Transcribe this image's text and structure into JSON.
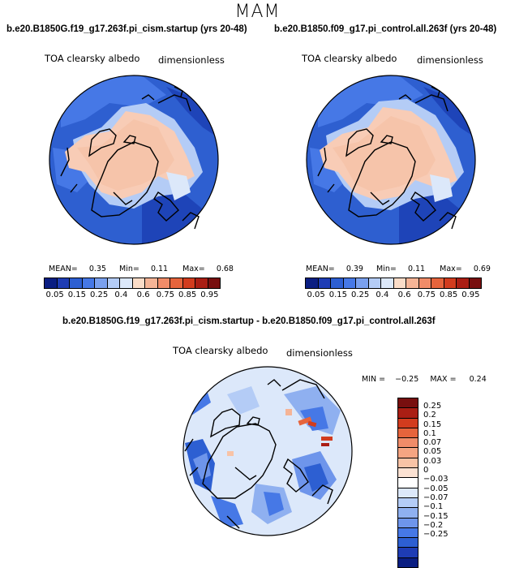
{
  "figure": {
    "season": "MAM",
    "diff_title": "b.e20.B1850G.f19_g17.263f.pi_cism.startup - b.e20.B1850.f09_g17.pi_control.all.263f"
  },
  "panels": [
    {
      "title": "b.e20.B1850G.f19_g17.263f.pi_cism.startup (yrs 20-48)",
      "variable": "TOA clearsky albedo",
      "units": "dimensionless",
      "stats": {
        "mean_label": "MEAN=",
        "mean": "0.35",
        "min_label": "Min=",
        "min": "0.11",
        "max_label": "Max=",
        "max": "0.68"
      }
    },
    {
      "title": "b.e20.B1850.f09_g17.pi_control.all.263f (yrs 20-48)",
      "variable": "TOA clearsky albedo",
      "units": "dimensionless",
      "stats": {
        "mean_label": "MEAN=",
        "mean": "0.39",
        "min_label": "Min=",
        "min": "0.11",
        "max_label": "Max=",
        "max": "0.69"
      }
    },
    {
      "variable": "TOA clearsky albedo",
      "units": "dimensionless",
      "stats": {
        "min_label": "MIN =",
        "min": "−0.25",
        "max_label": "MAX =",
        "max": "0.24"
      }
    }
  ],
  "colorbars": {
    "main": {
      "colors": [
        "#0a1e82",
        "#1e3cb4",
        "#2d5fd2",
        "#4678e6",
        "#7aa0ee",
        "#b4ccf6",
        "#dce8fa",
        "#fadcc8",
        "#f5b496",
        "#f08c69",
        "#e6643c",
        "#d23c1e",
        "#aa1e14",
        "#780f0f"
      ],
      "labels": [
        "0.05",
        "0.15",
        "0.25",
        "0.4",
        "0.6",
        "0.75",
        "0.85",
        "0.95"
      ]
    },
    "diff": {
      "colors": [
        "#780f0f",
        "#aa1e14",
        "#d23c1e",
        "#e6643c",
        "#f08c69",
        "#f5a582",
        "#f8c3a6",
        "#fbe1d2",
        "#ffffff",
        "#dce8fa",
        "#b4ccf6",
        "#8fb0f0",
        "#6e95eb",
        "#4678e6",
        "#2d5fd2",
        "#1e3cb4",
        "#0a1e82"
      ],
      "labels": [
        "0.25",
        "0.2",
        "0.15",
        "0.1",
        "0.07",
        "0.05",
        "0.03",
        "0",
        "−0.03",
        "−0.05",
        "−0.07",
        "−0.1",
        "−0.15",
        "−0.2",
        "−0.25"
      ]
    }
  }
}
